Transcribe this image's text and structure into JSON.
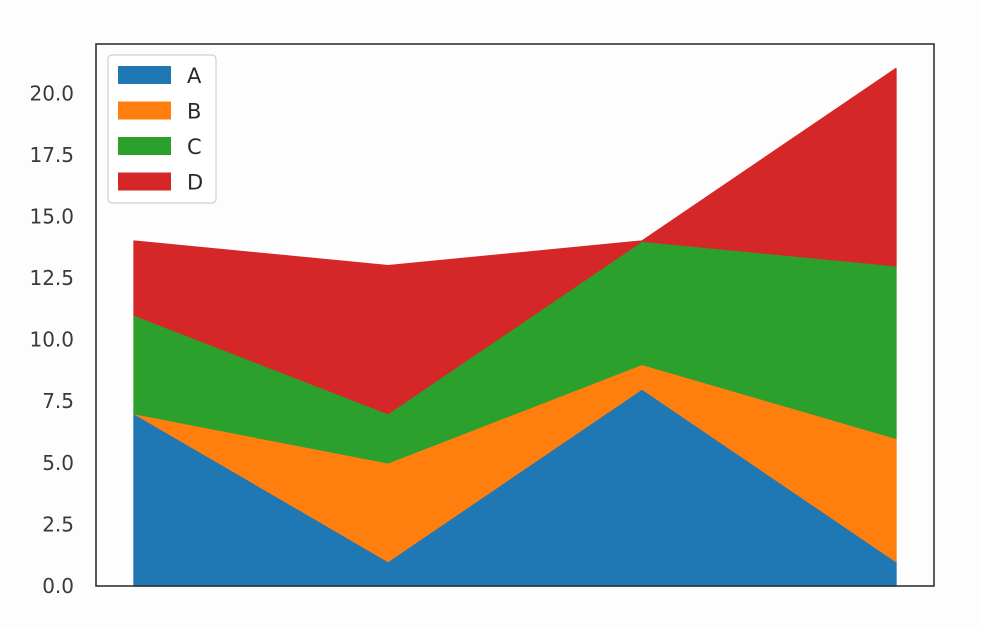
{
  "chart_data": {
    "type": "area",
    "stacked": true,
    "x": [
      0,
      1,
      2,
      3
    ],
    "series": [
      {
        "name": "A",
        "values": [
          7,
          1,
          8,
          1
        ],
        "color": "#1f77b4"
      },
      {
        "name": "B",
        "values": [
          0,
          4,
          1,
          5
        ],
        "color": "#ff7f0e"
      },
      {
        "name": "C",
        "values": [
          4,
          2,
          5,
          7
        ],
        "color": "#2ca02c"
      },
      {
        "name": "D",
        "values": [
          3,
          6,
          0,
          8
        ],
        "color": "#d62728"
      }
    ],
    "yticks": [
      "0.0",
      "2.5",
      "5.0",
      "7.5",
      "10.0",
      "12.5",
      "15.0",
      "17.5",
      "20.0"
    ],
    "ylim": [
      0,
      22
    ],
    "xlim": [
      -0.15,
      3.15
    ],
    "grid": false,
    "legend_position": "top-left"
  }
}
